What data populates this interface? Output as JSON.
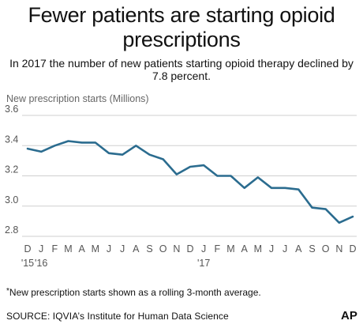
{
  "header": {
    "title_line1": "Fewer patients are starting opioid",
    "title_line2": "prescriptions",
    "subtitle_line1": "In 2017 the number of new patients starting opioid therapy declined by",
    "subtitle_line2": "7.8 percent."
  },
  "footer": {
    "footnote_mark": "*",
    "footnote": "New prescription starts shown as a rolling 3-month average.",
    "source": "SOURCE: IQVIA’s Institute for Human Data Science",
    "logo": "AP"
  },
  "colors": {
    "line": "#2b6c8f",
    "grid": "#cfcfcf",
    "axis_text": "#555555"
  },
  "chart_data": {
    "type": "line",
    "title": "Fewer patients are starting opioid prescriptions",
    "ylabel": "New prescription starts (Millions)",
    "ylim": [
      2.8,
      3.6
    ],
    "yticks": [
      "3.6",
      "3.4",
      "3.2",
      "3.0",
      "2.8"
    ],
    "grid": true,
    "x_tick_labels": [
      "D",
      "J",
      "F",
      "M",
      "A",
      "M",
      "J",
      "J",
      "A",
      "S",
      "O",
      "N",
      "D",
      "J",
      "F",
      "M",
      "A",
      "M",
      "J",
      "J",
      "A",
      "S",
      "O",
      "N",
      "D"
    ],
    "x_year_labels": [
      {
        "index": 0,
        "label": "'15"
      },
      {
        "index": 1,
        "label": "'16"
      },
      {
        "index": 13,
        "label": "'17"
      }
    ],
    "x": [
      "Dec 2015",
      "Jan 2016",
      "Feb 2016",
      "Mar 2016",
      "Apr 2016",
      "May 2016",
      "Jun 2016",
      "Jul 2016",
      "Aug 2016",
      "Sep 2016",
      "Oct 2016",
      "Nov 2016",
      "Dec 2016",
      "Jan 2017",
      "Feb 2017",
      "Mar 2017",
      "Apr 2017",
      "May 2017",
      "Jun 2017",
      "Jul 2017",
      "Aug 2017",
      "Sep 2017",
      "Oct 2017",
      "Nov 2017",
      "Dec 2017"
    ],
    "series": [
      {
        "values": [
          3.38,
          3.36,
          3.4,
          3.43,
          3.42,
          3.42,
          3.35,
          3.34,
          3.4,
          3.34,
          3.31,
          3.21,
          3.26,
          3.27,
          3.2,
          3.2,
          3.12,
          3.19,
          3.12,
          3.12,
          3.11,
          2.99,
          2.98,
          2.89,
          2.93
        ]
      }
    ]
  }
}
